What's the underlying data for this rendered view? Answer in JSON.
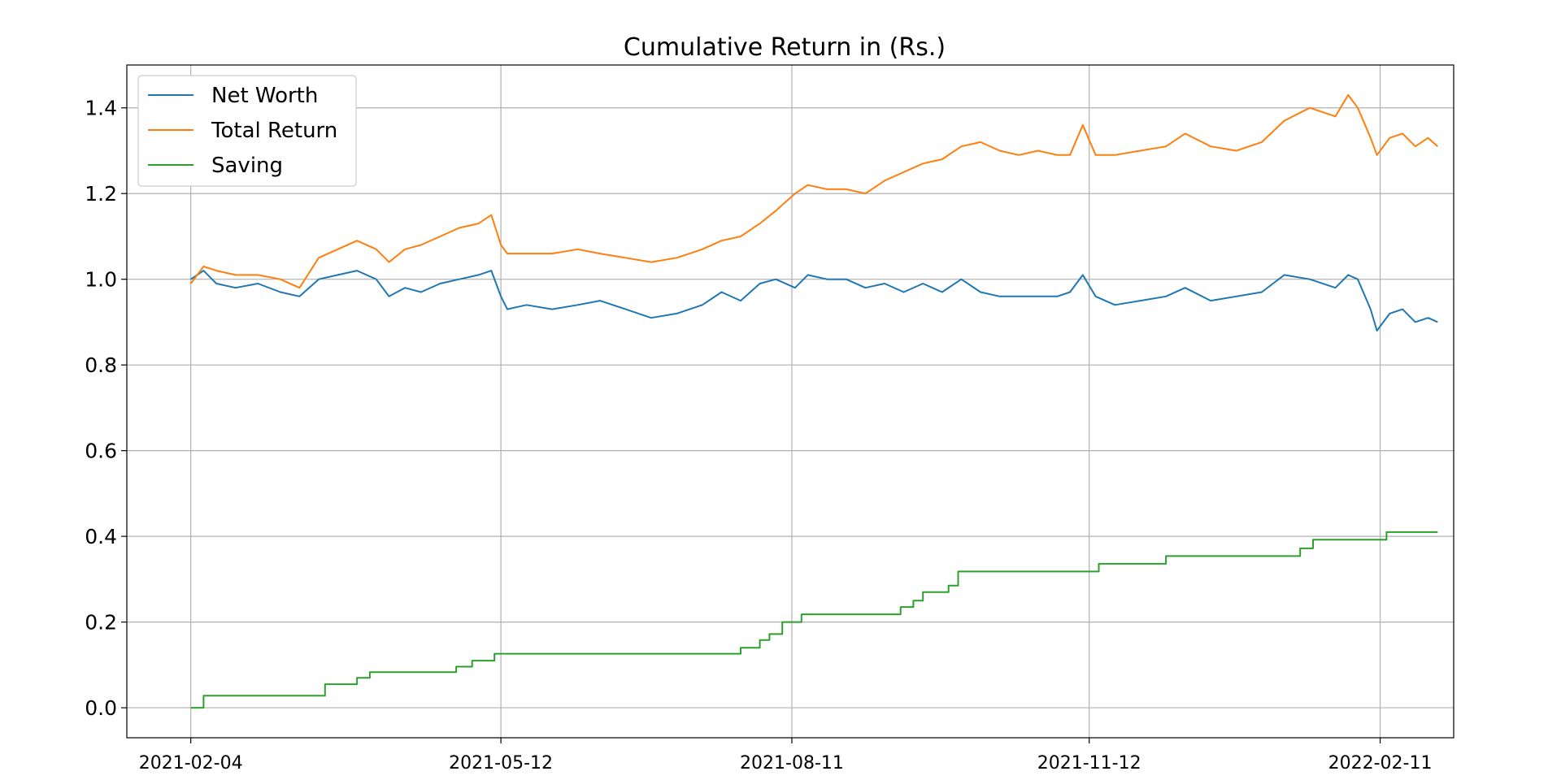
{
  "chart_data": {
    "type": "line",
    "title": "Cumulative Return in (Rs.)",
    "xlabel": "",
    "ylabel": "",
    "x_axis": "date",
    "xlim": [
      "2021-01-15",
      "2022-03-06"
    ],
    "ylim": [
      -0.07,
      1.5
    ],
    "grid": true,
    "legend_position": "top-left",
    "x_ticks": [
      "2021-02-04",
      "2021-05-12",
      "2021-08-11",
      "2021-11-12",
      "2022-02-11"
    ],
    "y_ticks": [
      0.0,
      0.2,
      0.4,
      0.6,
      0.8,
      1.0,
      1.2,
      1.4
    ],
    "y_tick_labels": [
      "0.0",
      "0.2",
      "0.4",
      "0.6",
      "0.8",
      "1.0",
      "1.2",
      "1.4"
    ],
    "series": [
      {
        "name": "Net Worth",
        "color": "#1f77b4",
        "step": false,
        "points": [
          [
            "2021-02-04",
            1.0
          ],
          [
            "2021-02-08",
            1.02
          ],
          [
            "2021-02-12",
            0.99
          ],
          [
            "2021-02-18",
            0.98
          ],
          [
            "2021-02-25",
            0.99
          ],
          [
            "2021-03-04",
            0.97
          ],
          [
            "2021-03-10",
            0.96
          ],
          [
            "2021-03-16",
            1.0
          ],
          [
            "2021-03-22",
            1.01
          ],
          [
            "2021-03-28",
            1.02
          ],
          [
            "2021-04-03",
            1.0
          ],
          [
            "2021-04-07",
            0.96
          ],
          [
            "2021-04-12",
            0.98
          ],
          [
            "2021-04-17",
            0.97
          ],
          [
            "2021-04-23",
            0.99
          ],
          [
            "2021-04-29",
            1.0
          ],
          [
            "2021-05-05",
            1.01
          ],
          [
            "2021-05-09",
            1.02
          ],
          [
            "2021-05-12",
            0.96
          ],
          [
            "2021-05-14",
            0.93
          ],
          [
            "2021-05-20",
            0.94
          ],
          [
            "2021-05-28",
            0.93
          ],
          [
            "2021-06-05",
            0.94
          ],
          [
            "2021-06-12",
            0.95
          ],
          [
            "2021-06-20",
            0.93
          ],
          [
            "2021-06-28",
            0.91
          ],
          [
            "2021-07-06",
            0.92
          ],
          [
            "2021-07-14",
            0.94
          ],
          [
            "2021-07-20",
            0.97
          ],
          [
            "2021-07-26",
            0.95
          ],
          [
            "2021-08-01",
            0.99
          ],
          [
            "2021-08-06",
            1.0
          ],
          [
            "2021-08-12",
            0.98
          ],
          [
            "2021-08-16",
            1.01
          ],
          [
            "2021-08-22",
            1.0
          ],
          [
            "2021-08-28",
            1.0
          ],
          [
            "2021-09-03",
            0.98
          ],
          [
            "2021-09-09",
            0.99
          ],
          [
            "2021-09-15",
            0.97
          ],
          [
            "2021-09-21",
            0.99
          ],
          [
            "2021-09-27",
            0.97
          ],
          [
            "2021-10-03",
            1.0
          ],
          [
            "2021-10-09",
            0.97
          ],
          [
            "2021-10-15",
            0.96
          ],
          [
            "2021-10-21",
            0.96
          ],
          [
            "2021-10-27",
            0.96
          ],
          [
            "2021-11-02",
            0.96
          ],
          [
            "2021-11-06",
            0.97
          ],
          [
            "2021-11-10",
            1.01
          ],
          [
            "2021-11-14",
            0.96
          ],
          [
            "2021-11-20",
            0.94
          ],
          [
            "2021-11-28",
            0.95
          ],
          [
            "2021-12-06",
            0.96
          ],
          [
            "2021-12-12",
            0.98
          ],
          [
            "2021-12-20",
            0.95
          ],
          [
            "2021-12-28",
            0.96
          ],
          [
            "2022-01-05",
            0.97
          ],
          [
            "2022-01-12",
            1.01
          ],
          [
            "2022-01-20",
            1.0
          ],
          [
            "2022-01-28",
            0.98
          ],
          [
            "2022-02-01",
            1.01
          ],
          [
            "2022-02-04",
            1.0
          ],
          [
            "2022-02-08",
            0.93
          ],
          [
            "2022-02-10",
            0.88
          ],
          [
            "2022-02-14",
            0.92
          ],
          [
            "2022-02-18",
            0.93
          ],
          [
            "2022-02-22",
            0.9
          ],
          [
            "2022-02-26",
            0.91
          ],
          [
            "2022-03-01",
            0.9
          ]
        ]
      },
      {
        "name": "Total Return",
        "color": "#ff7f0e",
        "step": false,
        "points": [
          [
            "2021-02-04",
            0.99
          ],
          [
            "2021-02-08",
            1.03
          ],
          [
            "2021-02-12",
            1.02
          ],
          [
            "2021-02-18",
            1.01
          ],
          [
            "2021-02-25",
            1.01
          ],
          [
            "2021-03-04",
            1.0
          ],
          [
            "2021-03-10",
            0.98
          ],
          [
            "2021-03-16",
            1.05
          ],
          [
            "2021-03-22",
            1.07
          ],
          [
            "2021-03-28",
            1.09
          ],
          [
            "2021-04-03",
            1.07
          ],
          [
            "2021-04-07",
            1.04
          ],
          [
            "2021-04-12",
            1.07
          ],
          [
            "2021-04-17",
            1.08
          ],
          [
            "2021-04-23",
            1.1
          ],
          [
            "2021-04-29",
            1.12
          ],
          [
            "2021-05-05",
            1.13
          ],
          [
            "2021-05-09",
            1.15
          ],
          [
            "2021-05-12",
            1.08
          ],
          [
            "2021-05-14",
            1.06
          ],
          [
            "2021-05-20",
            1.06
          ],
          [
            "2021-05-28",
            1.06
          ],
          [
            "2021-06-05",
            1.07
          ],
          [
            "2021-06-12",
            1.06
          ],
          [
            "2021-06-20",
            1.05
          ],
          [
            "2021-06-28",
            1.04
          ],
          [
            "2021-07-06",
            1.05
          ],
          [
            "2021-07-14",
            1.07
          ],
          [
            "2021-07-20",
            1.09
          ],
          [
            "2021-07-26",
            1.1
          ],
          [
            "2021-08-01",
            1.13
          ],
          [
            "2021-08-06",
            1.16
          ],
          [
            "2021-08-12",
            1.2
          ],
          [
            "2021-08-16",
            1.22
          ],
          [
            "2021-08-22",
            1.21
          ],
          [
            "2021-08-28",
            1.21
          ],
          [
            "2021-09-03",
            1.2
          ],
          [
            "2021-09-09",
            1.23
          ],
          [
            "2021-09-15",
            1.25
          ],
          [
            "2021-09-21",
            1.27
          ],
          [
            "2021-09-27",
            1.28
          ],
          [
            "2021-10-03",
            1.31
          ],
          [
            "2021-10-09",
            1.32
          ],
          [
            "2021-10-15",
            1.3
          ],
          [
            "2021-10-21",
            1.29
          ],
          [
            "2021-10-27",
            1.3
          ],
          [
            "2021-11-02",
            1.29
          ],
          [
            "2021-11-06",
            1.29
          ],
          [
            "2021-11-10",
            1.36
          ],
          [
            "2021-11-14",
            1.29
          ],
          [
            "2021-11-20",
            1.29
          ],
          [
            "2021-11-28",
            1.3
          ],
          [
            "2021-12-06",
            1.31
          ],
          [
            "2021-12-12",
            1.34
          ],
          [
            "2021-12-20",
            1.31
          ],
          [
            "2021-12-28",
            1.3
          ],
          [
            "2022-01-05",
            1.32
          ],
          [
            "2022-01-12",
            1.37
          ],
          [
            "2022-01-20",
            1.4
          ],
          [
            "2022-01-28",
            1.38
          ],
          [
            "2022-02-01",
            1.43
          ],
          [
            "2022-02-04",
            1.4
          ],
          [
            "2022-02-08",
            1.33
          ],
          [
            "2022-02-10",
            1.29
          ],
          [
            "2022-02-14",
            1.33
          ],
          [
            "2022-02-18",
            1.34
          ],
          [
            "2022-02-22",
            1.31
          ],
          [
            "2022-02-26",
            1.33
          ],
          [
            "2022-03-01",
            1.31
          ]
        ]
      },
      {
        "name": "Saving",
        "color": "#2ca02c",
        "step": true,
        "points": [
          [
            "2021-02-04",
            0.0
          ],
          [
            "2021-02-08",
            0.028
          ],
          [
            "2021-03-18",
            0.055
          ],
          [
            "2021-03-28",
            0.07
          ],
          [
            "2021-04-01",
            0.083
          ],
          [
            "2021-04-28",
            0.096
          ],
          [
            "2021-05-03",
            0.11
          ],
          [
            "2021-05-10",
            0.126
          ],
          [
            "2021-07-26",
            0.14
          ],
          [
            "2021-08-01",
            0.158
          ],
          [
            "2021-08-04",
            0.172
          ],
          [
            "2021-08-08",
            0.2
          ],
          [
            "2021-08-14",
            0.218
          ],
          [
            "2021-09-14",
            0.235
          ],
          [
            "2021-09-18",
            0.25
          ],
          [
            "2021-09-21",
            0.27
          ],
          [
            "2021-09-29",
            0.285
          ],
          [
            "2021-10-02",
            0.318
          ],
          [
            "2021-11-15",
            0.336
          ],
          [
            "2021-12-06",
            0.354
          ],
          [
            "2022-01-17",
            0.372
          ],
          [
            "2022-01-21",
            0.392
          ],
          [
            "2022-02-13",
            0.41
          ],
          [
            "2022-03-01",
            0.41
          ]
        ]
      }
    ]
  }
}
